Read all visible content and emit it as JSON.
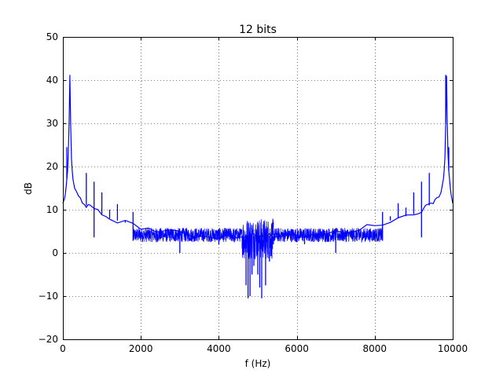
{
  "chart_data": {
    "type": "line",
    "title": "12 bits",
    "xlabel": "f (Hz)",
    "ylabel": "dB",
    "xlim": [
      0,
      10000
    ],
    "ylim": [
      -20,
      50
    ],
    "xticks": [
      0,
      2000,
      4000,
      6000,
      8000,
      10000
    ],
    "yticks": [
      -20,
      -10,
      0,
      10,
      20,
      30,
      40,
      50
    ],
    "xtick_labels": [
      "0",
      "2000",
      "4000",
      "6000",
      "8000",
      "10000"
    ],
    "ytick_labels": [
      "−20",
      "−10",
      "0",
      "10",
      "20",
      "30",
      "40",
      "50"
    ],
    "grid": true,
    "line_color": "#0000ff",
    "series": [
      {
        "name": "",
        "x": [
          0,
          20,
          40,
          60,
          80,
          100,
          120,
          140,
          160,
          180,
          200,
          220,
          240,
          260,
          280,
          300,
          350,
          400,
          450,
          500,
          550,
          600,
          650,
          700,
          800,
          900,
          1000,
          1100,
          1200,
          1400,
          1600,
          1800,
          2000,
          2200,
          2400,
          2600,
          2800,
          3000,
          3200,
          3400,
          3600,
          3800,
          4000,
          4200,
          4400,
          4600,
          4700,
          4800,
          4900,
          5000,
          5100,
          5200,
          5300,
          5400,
          5600,
          5800,
          6000,
          6200,
          6400,
          6600,
          6800,
          7000,
          7200,
          7400,
          7600,
          7800,
          8000,
          8200,
          8400,
          8600,
          8800,
          9000,
          9100,
          9200,
          9300,
          9400,
          9450,
          9500,
          9550,
          9600,
          9650,
          9700,
          9720,
          9740,
          9760,
          9780,
          9800,
          9820,
          9840,
          9860,
          9880,
          9900,
          9920,
          9940,
          9960,
          9980,
          10000
        ],
        "y": [
          11.5,
          12,
          12.5,
          13.5,
          15,
          17,
          19,
          23,
          30,
          41,
          30,
          22,
          19,
          17,
          16,
          15,
          14,
          13,
          12.5,
          12,
          11.5,
          11,
          10.8,
          10.5,
          10,
          9.5,
          9,
          8.5,
          8,
          7.5,
          7,
          6.5,
          6,
          5.5,
          5.2,
          5,
          4.8,
          4.5,
          4.2,
          4,
          4,
          3.8,
          3.8,
          3.8,
          3.8,
          4,
          4,
          4,
          4,
          4,
          4,
          4,
          4,
          3.8,
          3.8,
          3.8,
          3.8,
          4,
          4,
          4.2,
          4.5,
          4.8,
          5,
          5.2,
          5.5,
          6,
          6.5,
          7,
          7.5,
          8,
          8.5,
          9,
          9.5,
          10,
          10.5,
          11,
          11.5,
          12,
          12.5,
          13,
          13.5,
          14,
          15,
          16,
          17,
          19,
          22,
          30,
          41,
          30,
          23,
          19,
          17,
          15,
          13.5,
          12.5,
          11.5
        ]
      }
    ],
    "spikes": [
      {
        "x": 100,
        "y": 24.5
      },
      {
        "x": 180,
        "y": 41.2
      },
      {
        "x": 600,
        "y": 18.5
      },
      {
        "x": 800,
        "y": 16.5
      },
      {
        "x": 800,
        "y": 3.6
      },
      {
        "x": 1000,
        "y": 14
      },
      {
        "x": 1200,
        "y": 10
      },
      {
        "x": 1400,
        "y": 11.3
      },
      {
        "x": 1600,
        "y": 7.5
      },
      {
        "x": 1800,
        "y": 9.5
      },
      {
        "x": 1800,
        "y": 2.8
      },
      {
        "x": 2400,
        "y": 2.5
      },
      {
        "x": 3000,
        "y": 0
      },
      {
        "x": 4000,
        "y": 2
      },
      {
        "x": 4400,
        "y": 2.5
      },
      {
        "x": 4600,
        "y": 1
      },
      {
        "x": 4700,
        "y": -7.5
      },
      {
        "x": 4750,
        "y": -10.5
      },
      {
        "x": 4800,
        "y": -10
      },
      {
        "x": 4850,
        "y": -5
      },
      {
        "x": 4900,
        "y": -3
      },
      {
        "x": 5000,
        "y": -5
      },
      {
        "x": 5050,
        "y": -8
      },
      {
        "x": 5100,
        "y": -10.5
      },
      {
        "x": 5200,
        "y": -7.5
      },
      {
        "x": 5300,
        "y": -2
      },
      {
        "x": 5400,
        "y": 2
      },
      {
        "x": 6000,
        "y": 2.5
      },
      {
        "x": 6200,
        "y": 2
      },
      {
        "x": 7000,
        "y": 0
      },
      {
        "x": 7600,
        "y": 3
      },
      {
        "x": 8200,
        "y": 9.5
      },
      {
        "x": 8200,
        "y": 2.8
      },
      {
        "x": 8400,
        "y": 8.5
      },
      {
        "x": 8600,
        "y": 11.5
      },
      {
        "x": 8800,
        "y": 10.5
      },
      {
        "x": 9000,
        "y": 14
      },
      {
        "x": 9200,
        "y": 16.5
      },
      {
        "x": 9200,
        "y": 3.6
      },
      {
        "x": 9400,
        "y": 18.5
      },
      {
        "x": 9820,
        "y": 41.2
      },
      {
        "x": 9900,
        "y": 24.5
      }
    ],
    "noise_bands": [
      {
        "x0": 1800,
        "x1": 4600,
        "lo": 2.5,
        "hi": 5.8
      },
      {
        "x0": 4600,
        "x1": 5400,
        "lo": -1.5,
        "hi": 8
      },
      {
        "x0": 5400,
        "x1": 8200,
        "lo": 2.5,
        "hi": 5.8
      }
    ]
  }
}
